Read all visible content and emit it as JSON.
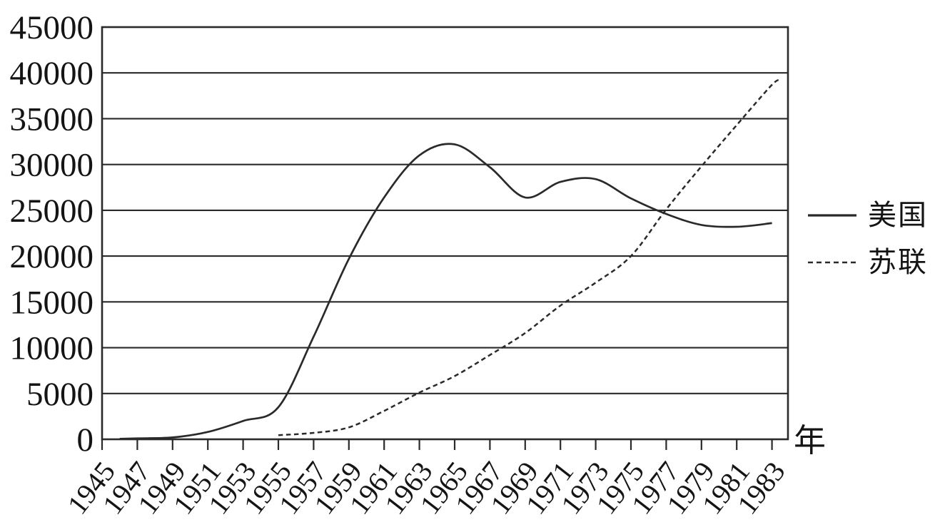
{
  "chart_data": {
    "type": "line",
    "title": "",
    "xlabel": "年",
    "ylabel": "",
    "x_tick_labels": [
      "1945",
      "1947",
      "1949",
      "1951",
      "1953",
      "1955",
      "1957",
      "1959",
      "1961",
      "1963",
      "1965",
      "1967",
      "1969",
      "1971",
      "1973",
      "1975",
      "1977",
      "1979",
      "1981",
      "1983"
    ],
    "y_ticks": [
      0,
      5000,
      10000,
      15000,
      20000,
      25000,
      30000,
      35000,
      40000,
      45000
    ],
    "xlim": [
      1945,
      1983.9
    ],
    "ylim": [
      0,
      45000
    ],
    "grid": "horizontal",
    "legend_position": "right-middle",
    "series": [
      {
        "name": "美国",
        "style": "solid",
        "points": [
          [
            1946,
            50
          ],
          [
            1947,
            100
          ],
          [
            1949,
            200
          ],
          [
            1951,
            800
          ],
          [
            1953,
            2000
          ],
          [
            1955,
            3500
          ],
          [
            1957,
            11200
          ],
          [
            1959,
            19700
          ],
          [
            1961,
            26400
          ],
          [
            1963,
            31000
          ],
          [
            1965,
            32200
          ],
          [
            1967,
            29700
          ],
          [
            1969,
            26400
          ],
          [
            1971,
            28100
          ],
          [
            1973,
            28400
          ],
          [
            1975,
            26300
          ],
          [
            1977,
            24600
          ],
          [
            1979,
            23400
          ],
          [
            1981,
            23200
          ],
          [
            1983,
            23600
          ]
        ]
      },
      {
        "name": "苏联",
        "style": "dashed",
        "points": [
          [
            1955,
            450
          ],
          [
            1957,
            700
          ],
          [
            1959,
            1300
          ],
          [
            1961,
            3100
          ],
          [
            1963,
            5100
          ],
          [
            1965,
            6900
          ],
          [
            1967,
            9200
          ],
          [
            1969,
            11600
          ],
          [
            1971,
            14600
          ],
          [
            1973,
            17100
          ],
          [
            1975,
            20000
          ],
          [
            1977,
            25100
          ],
          [
            1979,
            29800
          ],
          [
            1981,
            34300
          ],
          [
            1983,
            38700
          ],
          [
            1983.5,
            39200
          ]
        ]
      }
    ]
  },
  "colors": {
    "line": "#2a2a2a",
    "grid": "#2a2a2a",
    "text": "#141414",
    "background": "#ffffff"
  }
}
